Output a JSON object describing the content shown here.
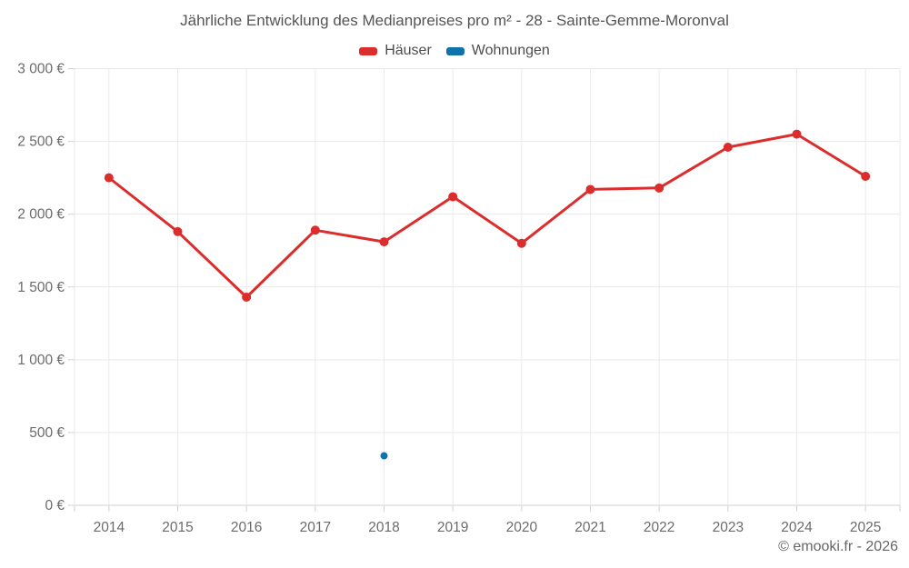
{
  "chart_data": {
    "type": "line",
    "title": "Jährliche Entwicklung des Medianpreises pro m² - 28 - Sainte-Gemme-Moronval",
    "categories": [
      "2014",
      "2015",
      "2016",
      "2017",
      "2018",
      "2019",
      "2020",
      "2021",
      "2022",
      "2023",
      "2024",
      "2025"
    ],
    "series": [
      {
        "name": "Häuser",
        "color": "#dc2d2d",
        "values": [
          2250,
          1880,
          1430,
          1890,
          1810,
          2120,
          1800,
          2170,
          2180,
          2460,
          2550,
          2260
        ]
      },
      {
        "name": "Wohnungen",
        "color": "#1072aa",
        "values": [
          null,
          null,
          null,
          null,
          340,
          null,
          null,
          null,
          null,
          null,
          null,
          null
        ]
      }
    ],
    "ylim": [
      0,
      3000
    ],
    "ytick_step": 500,
    "ytick_labels": [
      "0 €",
      "500 €",
      "1 000 €",
      "1 500 €",
      "2 000 €",
      "2 500 €",
      "3 000 €"
    ],
    "xlabel": "",
    "ylabel": "",
    "grid": true,
    "legend_position": "top-center"
  },
  "footer": {
    "text": "© emooki.fr - 2026"
  },
  "colors": {
    "background": "#ffffff",
    "grid": "#e9e9e9",
    "axis": "#d2d2d2",
    "title_text": "#545454",
    "legend_text": "#4d4d4d",
    "axis_text": "#6b6b6b",
    "footer_text": "#666666"
  }
}
